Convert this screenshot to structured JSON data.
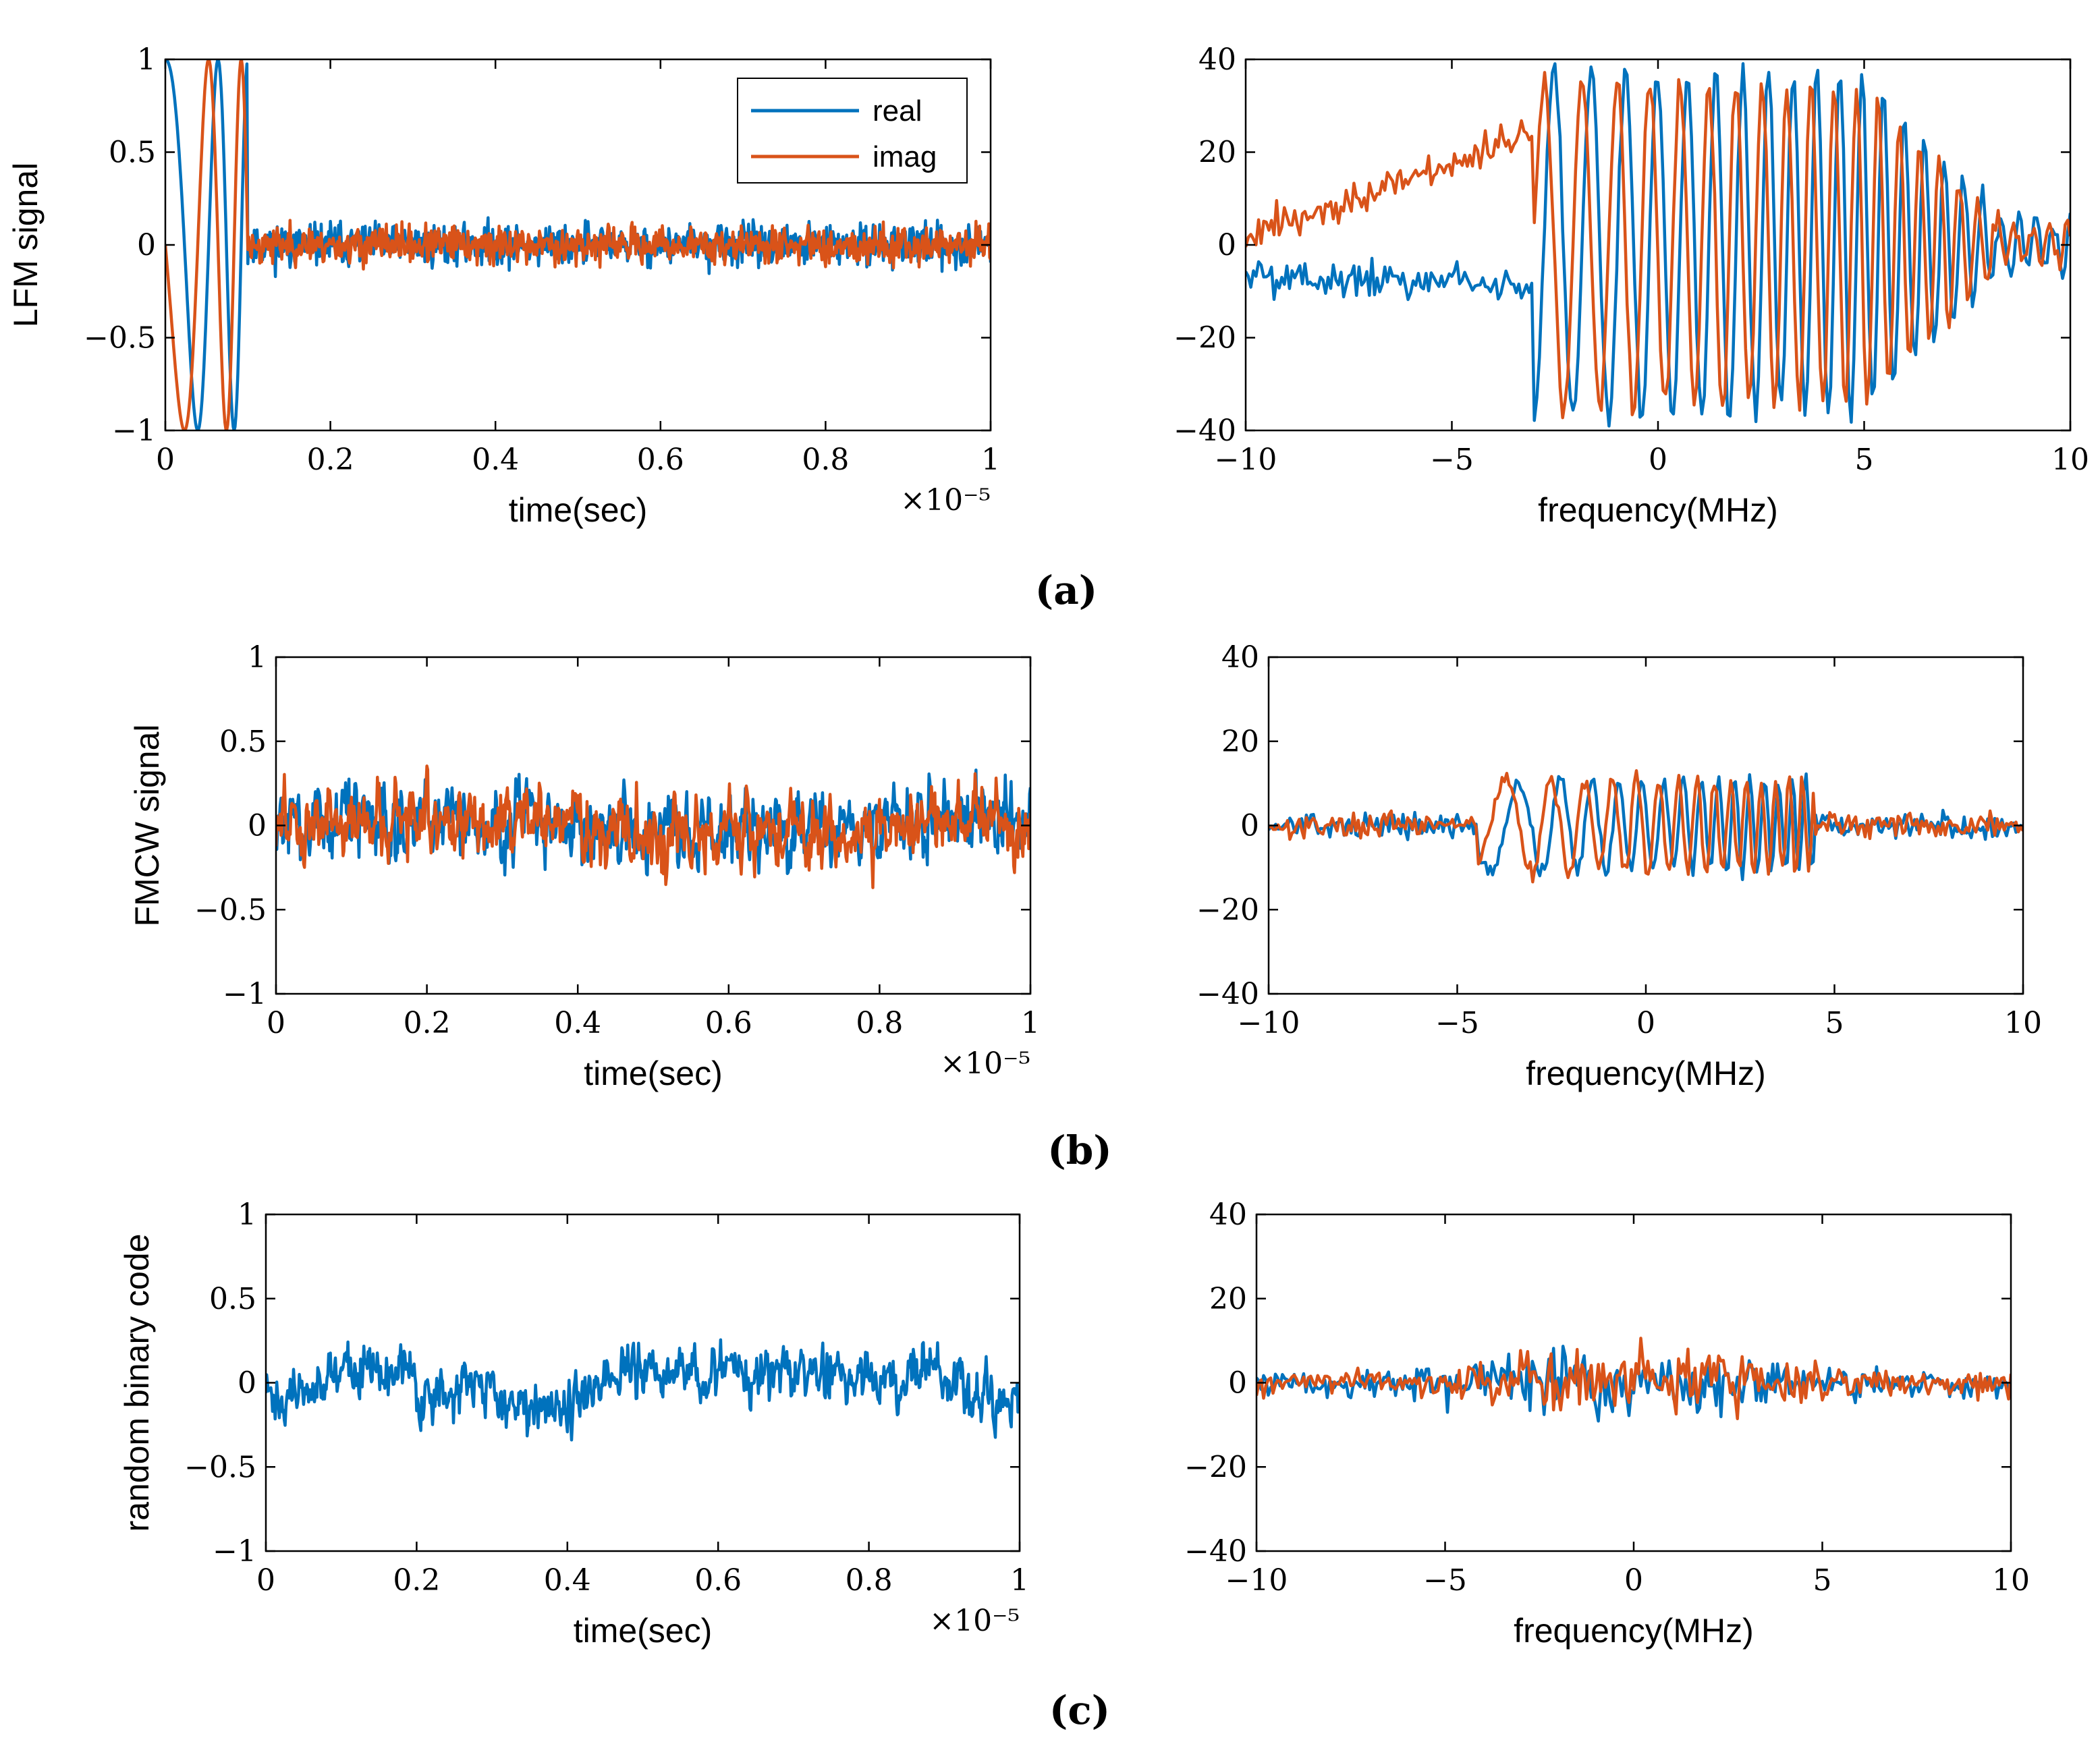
{
  "colors": {
    "real": "#0072BD",
    "imag": "#D95319",
    "axis": "#000000"
  },
  "subfigure_labels": [
    "(a)",
    "(b)",
    "(c)"
  ],
  "chart_data": [
    {
      "id": "a-time",
      "type": "line",
      "title": "",
      "xlabel": "time(sec)",
      "ylabel": "LFM signal",
      "xlim": [
        0,
        1
      ],
      "ylim": [
        -1,
        1
      ],
      "xticks": [
        0,
        0.2,
        0.4,
        0.6,
        0.8,
        1
      ],
      "yticks": [
        -1,
        -0.5,
        0,
        0.5,
        1
      ],
      "xtick_labels": [
        "0",
        "0.2",
        "0.4",
        "0.6",
        "0.8",
        "1"
      ],
      "ytick_labels": [
        "−1",
        "−0.5",
        "0",
        "0.5",
        "1"
      ],
      "x_multiplier": "×10⁻⁵",
      "legend": {
        "position": "top-right",
        "entries": [
          "real",
          "imag"
        ]
      },
      "series": [
        {
          "name": "real",
          "color_key": "real",
          "generator": "lfm_time",
          "amplitude": 0.08,
          "params": {
            "seed": 11,
            "phase": 0
          }
        },
        {
          "name": "imag",
          "color_key": "imag",
          "generator": "lfm_time",
          "amplitude": 0.07,
          "params": {
            "seed": 23,
            "phase": 1.5708
          }
        }
      ]
    },
    {
      "id": "a-freq",
      "type": "line",
      "title": "",
      "xlabel": "frequency(MHz)",
      "ylabel": "",
      "xlim": [
        -10,
        10
      ],
      "ylim": [
        -40,
        40
      ],
      "xticks": [
        -10,
        -5,
        0,
        5,
        10
      ],
      "yticks": [
        -40,
        -20,
        0,
        20,
        40
      ],
      "xtick_labels": [
        "−10",
        "−5",
        "0",
        "5",
        "10"
      ],
      "ytick_labels": [
        "−40",
        "−20",
        "0",
        "20",
        "40"
      ],
      "series": [
        {
          "name": "real",
          "color_key": "real",
          "generator": "lfm_freq",
          "amplitude": 37,
          "params": {
            "seed": 5,
            "phase": 0,
            "offset": -8
          }
        },
        {
          "name": "imag",
          "color_key": "imag",
          "generator": "lfm_freq",
          "amplitude": 35,
          "params": {
            "seed": 9,
            "phase": 1.5708,
            "offset": 15
          }
        }
      ]
    },
    {
      "id": "b-time",
      "type": "line",
      "title": "",
      "xlabel": "time(sec)",
      "ylabel": "FMCW signal",
      "xlim": [
        0,
        1
      ],
      "ylim": [
        -1,
        1
      ],
      "xticks": [
        0,
        0.2,
        0.4,
        0.6,
        0.8,
        1
      ],
      "yticks": [
        -1,
        -0.5,
        0,
        0.5,
        1
      ],
      "xtick_labels": [
        "0",
        "0.2",
        "0.4",
        "0.6",
        "0.8",
        "1"
      ],
      "ytick_labels": [
        "−1",
        "−0.5",
        "0",
        "0.5",
        "1"
      ],
      "x_multiplier": "×10⁻⁵",
      "series": [
        {
          "name": "real",
          "color_key": "real",
          "generator": "noise_time",
          "amplitude": 0.14,
          "params": {
            "seed": 31,
            "phase": 0
          }
        },
        {
          "name": "imag",
          "color_key": "imag",
          "generator": "noise_time",
          "amplitude": 0.13,
          "params": {
            "seed": 47,
            "phase": 1.5708
          }
        }
      ]
    },
    {
      "id": "b-freq",
      "type": "line",
      "title": "",
      "xlabel": "frequency(MHz)",
      "ylabel": "",
      "xlim": [
        -10,
        10
      ],
      "ylim": [
        -40,
        40
      ],
      "xticks": [
        -10,
        -5,
        0,
        5,
        10
      ],
      "yticks": [
        -40,
        -20,
        0,
        20,
        40
      ],
      "xtick_labels": [
        "−10",
        "−5",
        "0",
        "5",
        "10"
      ],
      "ytick_labels": [
        "−40",
        "−20",
        "0",
        "20",
        "40"
      ],
      "series": [
        {
          "name": "real",
          "color_key": "real",
          "generator": "fmcw_freq",
          "amplitude": 11,
          "params": {
            "seed": 13,
            "phase": 0
          }
        },
        {
          "name": "imag",
          "color_key": "imag",
          "generator": "fmcw_freq",
          "amplitude": 11,
          "params": {
            "seed": 17,
            "phase": 1.5708
          }
        }
      ]
    },
    {
      "id": "c-time",
      "type": "line",
      "title": "",
      "xlabel": "time(sec)",
      "ylabel": "random binary code",
      "xlim": [
        0,
        1
      ],
      "ylim": [
        -1,
        1
      ],
      "xticks": [
        0,
        0.2,
        0.4,
        0.6,
        0.8,
        1
      ],
      "yticks": [
        -1,
        -0.5,
        0,
        0.5,
        1
      ],
      "xtick_labels": [
        "0",
        "0.2",
        "0.4",
        "0.6",
        "0.8",
        "1"
      ],
      "ytick_labels": [
        "−1",
        "−0.5",
        "0",
        "0.5",
        "1"
      ],
      "x_multiplier": "×10⁻⁵",
      "series": [
        {
          "name": "real",
          "color_key": "real",
          "generator": "binary_time",
          "amplitude": 0.1,
          "params": {
            "seed": 71,
            "phase": 0
          }
        }
      ]
    },
    {
      "id": "c-freq",
      "type": "line",
      "title": "",
      "xlabel": "frequency(MHz)",
      "ylabel": "",
      "xlim": [
        -10,
        10
      ],
      "ylim": [
        -40,
        40
      ],
      "xticks": [
        -10,
        -5,
        0,
        5,
        10
      ],
      "yticks": [
        -40,
        -20,
        0,
        20,
        40
      ],
      "xtick_labels": [
        "−10",
        "−5",
        "0",
        "5",
        "10"
      ],
      "ytick_labels": [
        "−40",
        "−20",
        "0",
        "20",
        "40"
      ],
      "series": [
        {
          "name": "real",
          "color_key": "real",
          "generator": "rand_freq",
          "amplitude": 18,
          "params": {
            "seed": 83,
            "phase": 0
          }
        },
        {
          "name": "imag",
          "color_key": "imag",
          "generator": "rand_freq",
          "amplitude": 17,
          "params": {
            "seed": 97,
            "phase": 1.5708
          }
        }
      ]
    }
  ]
}
